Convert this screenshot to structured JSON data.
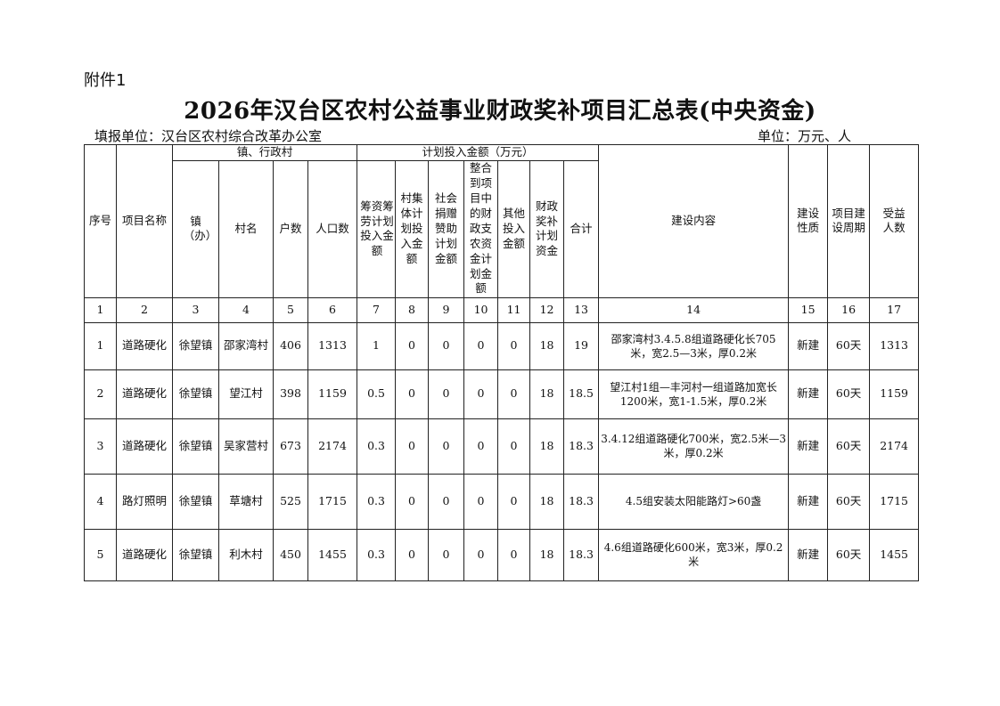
{
  "attachment_label": "附件1",
  "title": "2026年汉台区农村公益事业财政奖补项目汇总表(中央资金)",
  "reporting_unit": "填报单位：汉台区农村综合改革办公室",
  "unit": "单位：万元、人",
  "headers": {
    "seq": "序号",
    "project_name": "项目名称",
    "town_village_group": "镇、行政村",
    "town": "镇（办）",
    "village": "村名",
    "households": "户数",
    "population": "人口数",
    "planned_investment_group": "计划投入金额（万元）",
    "self_raised": "筹资筹劳计划投入金额",
    "village_collective": "村集体计划投入金额",
    "social_donation": "社会捐赠赞助计划金额",
    "integrated_funds": "整合到项目中的财政支农资金计划金额",
    "other": "其他投入金额",
    "fiscal_subsidy": "财政奖补计划资金",
    "total": "合计",
    "content": "建设内容",
    "nature": "建设性质",
    "period": "项目建设周期",
    "beneficiaries": "受益人数"
  },
  "column_numbers": [
    "1",
    "2",
    "3",
    "4",
    "5",
    "6",
    "7",
    "8",
    "9",
    "10",
    "11",
    "12",
    "13",
    "14",
    "15",
    "16",
    "17"
  ],
  "rows": [
    {
      "seq": "1",
      "name": "道路硬化",
      "town": "徐望镇",
      "village": "邵家湾村",
      "households": "406",
      "population": "1313",
      "self_raised": "1",
      "collective": "0",
      "donation": "0",
      "integrated": "0",
      "other": "0",
      "subsidy": "18",
      "total": "19",
      "content": "邵家湾村3.4.5.8组道路硬化长705米，宽2.5—3米，厚0.2米",
      "nature": "新建",
      "period": "60天",
      "beneficiaries": "1313"
    },
    {
      "seq": "2",
      "name": "道路硬化",
      "town": "徐望镇",
      "village": "望江村",
      "households": "398",
      "population": "1159",
      "self_raised": "0.5",
      "collective": "0",
      "donation": "0",
      "integrated": "0",
      "other": "0",
      "subsidy": "18",
      "total": "18.5",
      "content": "望江村1组—丰河村一组道路加宽长1200米，宽1-1.5米，厚0.2米",
      "nature": "新建",
      "period": "60天",
      "beneficiaries": "1159"
    },
    {
      "seq": "3",
      "name": "道路硬化",
      "town": "徐望镇",
      "village": "吴家营村",
      "households": "673",
      "population": "2174",
      "self_raised": "0.3",
      "collective": "0",
      "donation": "0",
      "integrated": "0",
      "other": "0",
      "subsidy": "18",
      "total": "18.3",
      "content": "3.4.12组道路硬化700米，宽2.5米—3米，厚0.2米",
      "nature": "新建",
      "period": "60天",
      "beneficiaries": "2174"
    },
    {
      "seq": "4",
      "name": "路灯照明",
      "town": "徐望镇",
      "village": "草塘村",
      "households": "525",
      "population": "1715",
      "self_raised": "0.3",
      "collective": "0",
      "donation": "0",
      "integrated": "0",
      "other": "0",
      "subsidy": "18",
      "total": "18.3",
      "content": "4.5组安装太阳能路灯>60盏",
      "nature": "新建",
      "period": "60天",
      "beneficiaries": "1715"
    },
    {
      "seq": "5",
      "name": "道路硬化",
      "town": "徐望镇",
      "village": "利木村",
      "households": "450",
      "population": "1455",
      "self_raised": "0.3",
      "collective": "0",
      "donation": "0",
      "integrated": "0",
      "other": "0",
      "subsidy": "18",
      "total": "18.3",
      "content": "4.6组道路硬化600米，宽3米，厚0.2米",
      "nature": "新建",
      "period": "60天",
      "beneficiaries": "1455"
    }
  ]
}
